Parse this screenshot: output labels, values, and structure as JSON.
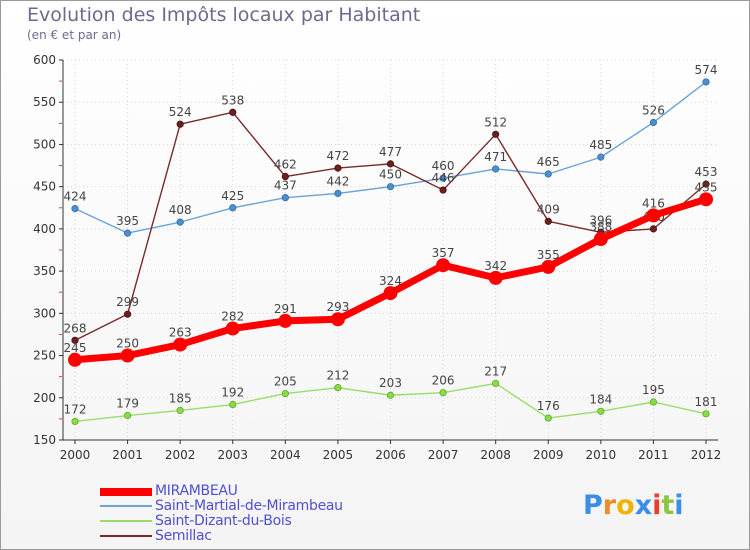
{
  "chart_data": {
    "type": "line",
    "title": "Evolution des Impôts locaux par Habitant",
    "subtitle": "(en € et par an)",
    "xlabel": "",
    "ylabel": "",
    "ylim": [
      150,
      600
    ],
    "yticks": [
      150,
      200,
      250,
      300,
      350,
      400,
      450,
      500,
      550,
      600
    ],
    "x": [
      "2000",
      "2001",
      "2002",
      "2003",
      "2004",
      "2005",
      "2006",
      "2007",
      "2008",
      "2009",
      "2010",
      "2011",
      "2012"
    ],
    "legend_position": "bottom-left",
    "series": [
      {
        "name": "MIRAMBEAU",
        "color": "#ff0000",
        "values": [
          245,
          250,
          263,
          282,
          291,
          293,
          324,
          357,
          342,
          355,
          388,
          416,
          435
        ]
      },
      {
        "name": "Saint-Martial-de-Mirambeau",
        "color": "#6aa3d6",
        "values": [
          424,
          395,
          408,
          425,
          437,
          442,
          450,
          460,
          471,
          465,
          485,
          526,
          574
        ]
      },
      {
        "name": "Saint-Dizant-du-Bois",
        "color": "#99dd66",
        "values": [
          172,
          179,
          185,
          192,
          205,
          212,
          203,
          206,
          217,
          176,
          184,
          195,
          181
        ]
      },
      {
        "name": "Semillac",
        "color": "#7a2a2a",
        "values": [
          268,
          299,
          524,
          538,
          462,
          472,
          477,
          446,
          512,
          409,
          396,
          400,
          453
        ]
      }
    ]
  }
}
